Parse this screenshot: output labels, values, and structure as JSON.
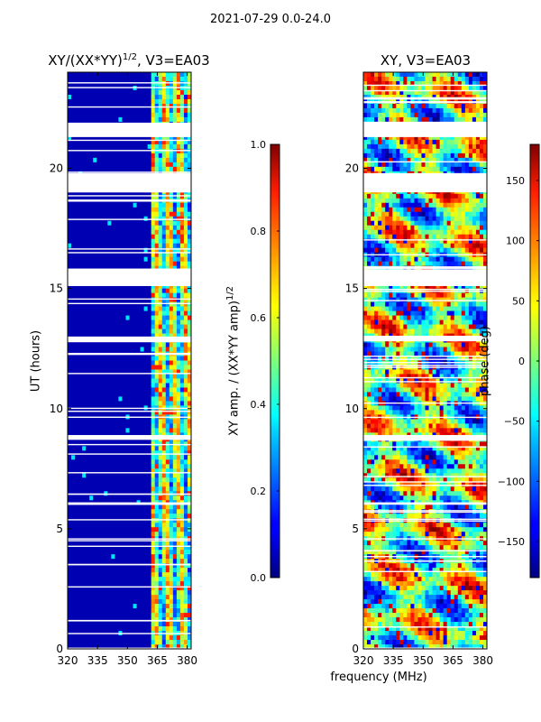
{
  "figure": {
    "suptitle": "2021-07-29 0.0-24.0"
  },
  "chart_data": [
    {
      "type": "heatmap",
      "title_prefix": "XY/(XX*YY)",
      "title_sup": "1/2",
      "title_suffix": ", V3=EA03",
      "xlabel": "",
      "ylabel": "UT (hours)",
      "xlim": [
        320,
        382
      ],
      "ylim": [
        0,
        24
      ],
      "xticks": [
        320,
        335,
        350,
        365,
        380
      ],
      "yticks": [
        0,
        5,
        10,
        15,
        20
      ],
      "colorbar": {
        "label_prefix": "XY amp. / (XX*YY amp)",
        "label_sup": "1/2",
        "range": [
          0.0,
          1.0
        ],
        "ticks": [
          "0.0",
          "0.2",
          "0.4",
          "0.6",
          "0.8",
          "1.0"
        ],
        "colormap": "jet"
      },
      "flagged_time_ranges_hours": [
        [
          21.3,
          21.9
        ],
        [
          19.0,
          19.8
        ],
        [
          15.1,
          15.8
        ],
        [
          12.8,
          13.0
        ],
        [
          8.7,
          8.9
        ],
        [
          6.0,
          6.1
        ]
      ],
      "active_band_mhz": [
        362,
        382
      ],
      "description_values": "Low normalized amplitude (~0.05) from 320-362 MHz; 0.3-0.9 in 362-382 MHz band"
    },
    {
      "type": "heatmap",
      "title": "XY, V3=EA03",
      "xlabel": "frequency (MHz)",
      "ylabel": "",
      "xlim": [
        320,
        382
      ],
      "ylim": [
        0,
        24
      ],
      "xticks": [
        320,
        335,
        350,
        365,
        380
      ],
      "yticks": [
        0,
        5,
        10,
        15,
        20
      ],
      "colorbar": {
        "label": "phase (deg)",
        "range": [
          -180,
          180
        ],
        "ticks": [
          "−150",
          "−100",
          "−50",
          "0",
          "50",
          "100",
          "150"
        ],
        "colormap": "jet"
      },
      "flagged_time_ranges_hours": [
        [
          21.3,
          21.9
        ],
        [
          19.0,
          19.8
        ],
        [
          15.1,
          15.8
        ],
        [
          12.8,
          13.0
        ],
        [
          8.7,
          8.9
        ],
        [
          6.0,
          6.1
        ]
      ],
      "description_values": "Phase spans -180 to 180 deg, mostly near -50 to 50 with structured fringes"
    }
  ]
}
